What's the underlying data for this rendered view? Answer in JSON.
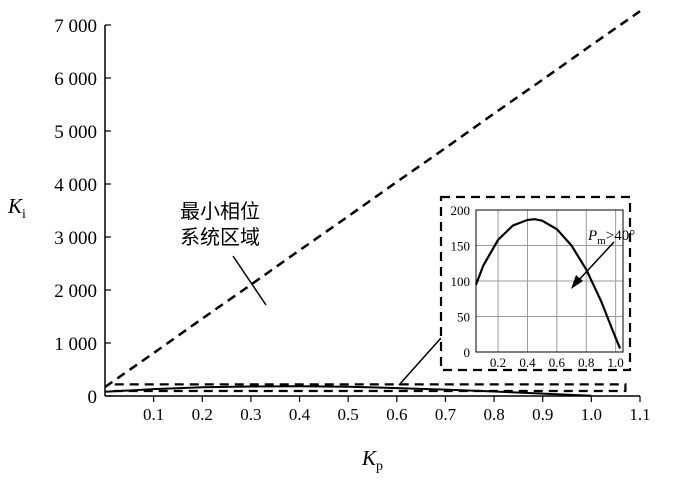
{
  "chart_data": {
    "type": "line",
    "xlabel": "K",
    "xlabel_sub": "p",
    "ylabel": "K",
    "ylabel_sub": "i",
    "xlim": [
      0.0,
      1.1
    ],
    "ylim": [
      0,
      7000
    ],
    "xticks": [
      0.1,
      0.2,
      0.3,
      0.4,
      0.5,
      0.6,
      0.7,
      0.8,
      0.9,
      1.0,
      1.1
    ],
    "xtick_labels": [
      "0.1",
      "0.2",
      "0.3",
      "0.4",
      "0.5",
      "0.6",
      "0.7",
      "0.8",
      "0.9",
      "1.0",
      "1.1"
    ],
    "yticks": [
      0,
      1000,
      2000,
      3000,
      4000,
      5000,
      6000,
      7000
    ],
    "ytick_labels": [
      "0",
      "1 000",
      "2 000",
      "3 000",
      "4 000",
      "5 000",
      "6 000",
      "7 000"
    ],
    "grid": false,
    "series": [
      {
        "style": "dashed",
        "x": [
          0.0,
          0.1,
          0.2,
          0.3,
          0.4,
          0.5,
          0.6,
          0.7,
          0.8,
          0.9,
          1.0,
          1.1
        ],
        "y": [
          170,
          810,
          1460,
          2100,
          2750,
          3390,
          4040,
          4680,
          5330,
          5970,
          6620,
          7260
        ]
      },
      {
        "style": "solid",
        "x": [
          0.0,
          0.1,
          0.2,
          0.3,
          0.4,
          0.5,
          0.6,
          0.7,
          0.8,
          0.9,
          1.0
        ],
        "y": [
          80,
          130,
          165,
          180,
          185,
          175,
          150,
          120,
          85,
          45,
          5
        ]
      }
    ],
    "annotations": [
      {
        "text": "最小相位",
        "line": 1
      },
      {
        "text": "系统区域",
        "line": 2
      }
    ],
    "region_box": {
      "x": [
        0.02,
        1.07
      ],
      "y": [
        0,
        220
      ]
    },
    "inset": {
      "type": "line",
      "xlim": [
        0.05,
        1.05
      ],
      "ylim": [
        0,
        200
      ],
      "xticks": [
        0.2,
        0.4,
        0.6,
        0.8,
        1.0
      ],
      "xtick_labels": [
        "0.2",
        "0.4",
        "0.6",
        "0.8",
        "1.0"
      ],
      "yticks": [
        0,
        50,
        100,
        150,
        200
      ],
      "ytick_labels": [
        "0",
        "50",
        "100",
        "150",
        "200"
      ],
      "grid": true,
      "series": [
        {
          "style": "solid",
          "x": [
            0.05,
            0.1,
            0.2,
            0.3,
            0.4,
            0.45,
            0.5,
            0.6,
            0.7,
            0.8,
            0.9,
            1.0,
            1.03
          ],
          "y": [
            95,
            122,
            158,
            178,
            186,
            187,
            185,
            173,
            150,
            116,
            72,
            20,
            5
          ]
        }
      ],
      "annotation": {
        "text": "P",
        "sub": "m",
        "suffix": ">40°"
      }
    }
  }
}
